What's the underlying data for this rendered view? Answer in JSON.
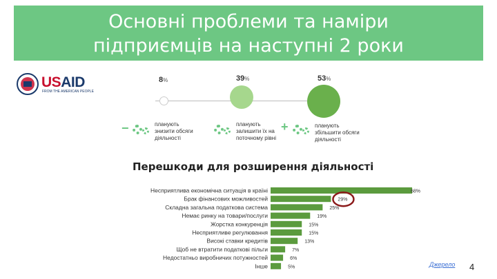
{
  "header": {
    "title_line1": "Основні проблеми та наміри",
    "title_line2": "підприємців на наступні 2 роки"
  },
  "logo": {
    "name": "USAID",
    "us": "US",
    "aid": "AID",
    "tagline": "FROM THE AMERICAN PEOPLE"
  },
  "plans": [
    {
      "value": "8",
      "unit": "%",
      "text_lines": [
        "планують",
        "знизити обсяги",
        "діяльності"
      ],
      "sign": "−",
      "color": "#ffffff"
    },
    {
      "value": "39",
      "unit": "%",
      "text_lines": [
        "планують",
        "залишити їх на",
        "поточному рівні"
      ],
      "sign": "",
      "color": "#a6d78d"
    },
    {
      "value": "53",
      "unit": "%",
      "text_lines": [
        "планують",
        "збільшити обсяги",
        "діяльності"
      ],
      "sign": "+",
      "color": "#6ab04c"
    }
  ],
  "chart_data": {
    "type": "bar",
    "orientation": "horizontal",
    "title": "Перешкоди для розширення діяльності",
    "categories": [
      "Несприятлива економічна ситуація в країні",
      "Брак фінансових можливостей",
      "Складна загальна податкова система",
      "Немає ринку на товари/послуги",
      "Жорстка конкуренція",
      "Несприятливе регулювання",
      "Високі ставки кредитів",
      "Щоб не втратити податкові пільги",
      "Недостатньо виробничих потужностей",
      "Інше"
    ],
    "values": [
      68,
      29,
      25,
      19,
      15,
      15,
      13,
      7,
      6,
      5
    ],
    "value_labels": [
      "68%",
      "29%",
      "25%",
      "19%",
      "15%",
      "15%",
      "13%",
      "7%",
      "6%",
      "5%"
    ],
    "highlighted_index": 1,
    "bar_color": "#5b9b3e",
    "highlight_color": "#8b1a1a"
  },
  "footer": {
    "source": "Джерело",
    "page": "4"
  }
}
